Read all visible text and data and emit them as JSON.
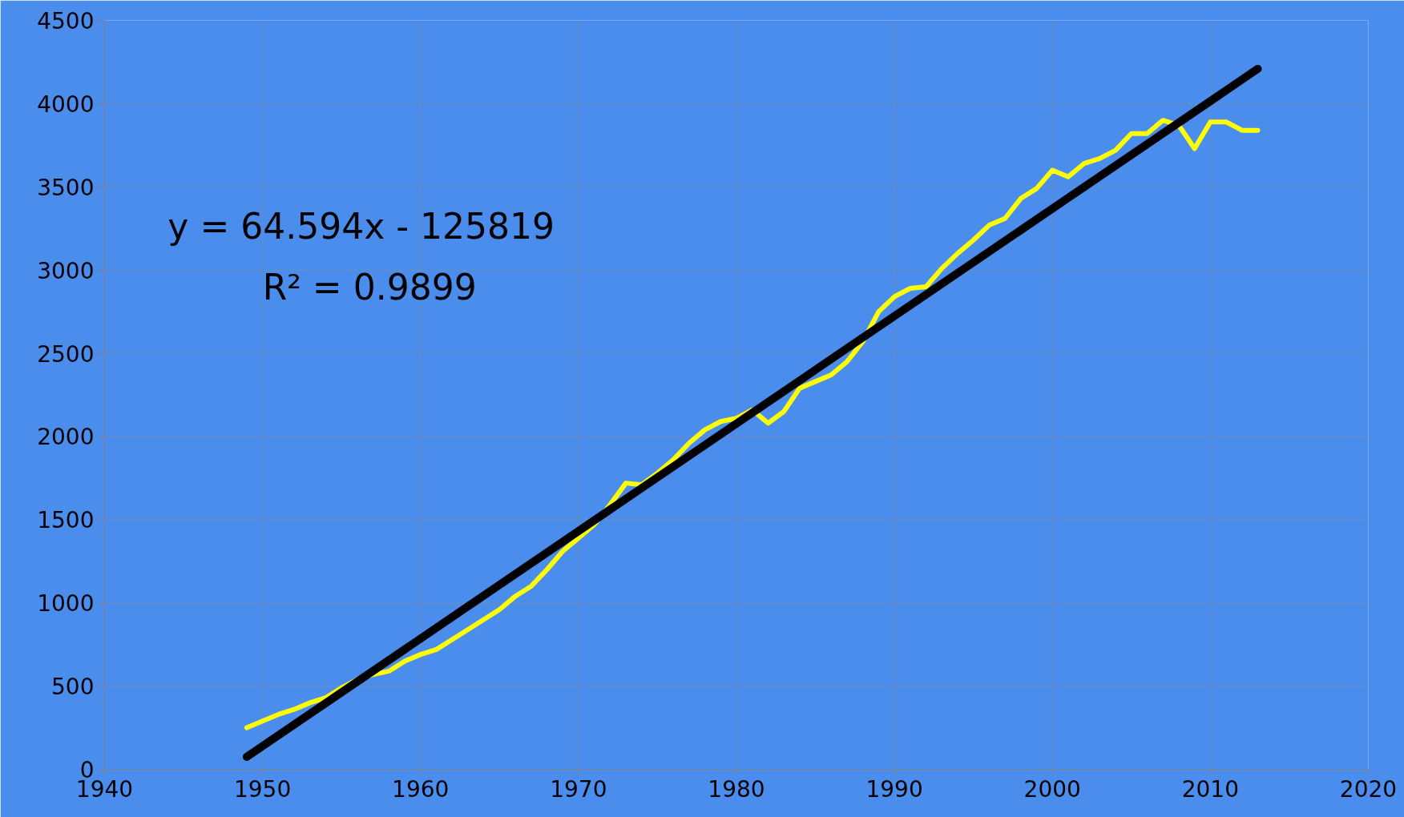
{
  "chart_data": {
    "type": "line",
    "x": [
      1949,
      1950,
      1951,
      1952,
      1953,
      1954,
      1955,
      1956,
      1957,
      1958,
      1959,
      1960,
      1961,
      1962,
      1963,
      1964,
      1965,
      1966,
      1967,
      1968,
      1969,
      1970,
      1971,
      1972,
      1973,
      1974,
      1975,
      1976,
      1977,
      1978,
      1979,
      1980,
      1981,
      1982,
      1983,
      1984,
      1985,
      1986,
      1987,
      1988,
      1989,
      1990,
      1991,
      1992,
      1993,
      1994,
      1995,
      1996,
      1997,
      1998,
      1999,
      2000,
      2001,
      2002,
      2003,
      2004,
      2005,
      2006,
      2007,
      2008,
      2009,
      2010,
      2011,
      2012,
      2013
    ],
    "series": [
      {
        "color": "#ffff00",
        "values": [
          250,
          290,
          330,
          360,
          400,
          430,
          490,
          540,
          570,
          590,
          650,
          690,
          720,
          780,
          840,
          900,
          960,
          1040,
          1100,
          1200,
          1310,
          1390,
          1470,
          1590,
          1720,
          1710,
          1780,
          1860,
          1960,
          2040,
          2090,
          2110,
          2160,
          2080,
          2150,
          2290,
          2330,
          2370,
          2450,
          2570,
          2750,
          2840,
          2890,
          2900,
          3010,
          3100,
          3180,
          3270,
          3310,
          3430,
          3490,
          3600,
          3560,
          3640,
          3670,
          3720,
          3820,
          3820,
          3900,
          3870,
          3730,
          3890,
          3890,
          3840,
          3840
        ]
      },
      {
        "type": "line",
        "color": "#000000",
        "x": [
          1949,
          2013
        ],
        "values": [
          75,
          4209
        ]
      }
    ],
    "xlim": [
      1940,
      2020
    ],
    "xticks": [
      1940,
      1950,
      1960,
      1970,
      1980,
      1990,
      2000,
      2010,
      2020
    ],
    "ylim": [
      0,
      4500
    ],
    "yticks": [
      0,
      500,
      1000,
      1500,
      2000,
      2500,
      3000,
      3500,
      4000,
      4500
    ],
    "grid": true,
    "annotations": [
      "y = 64.594x - 125819",
      "R² = 0.9899"
    ]
  }
}
